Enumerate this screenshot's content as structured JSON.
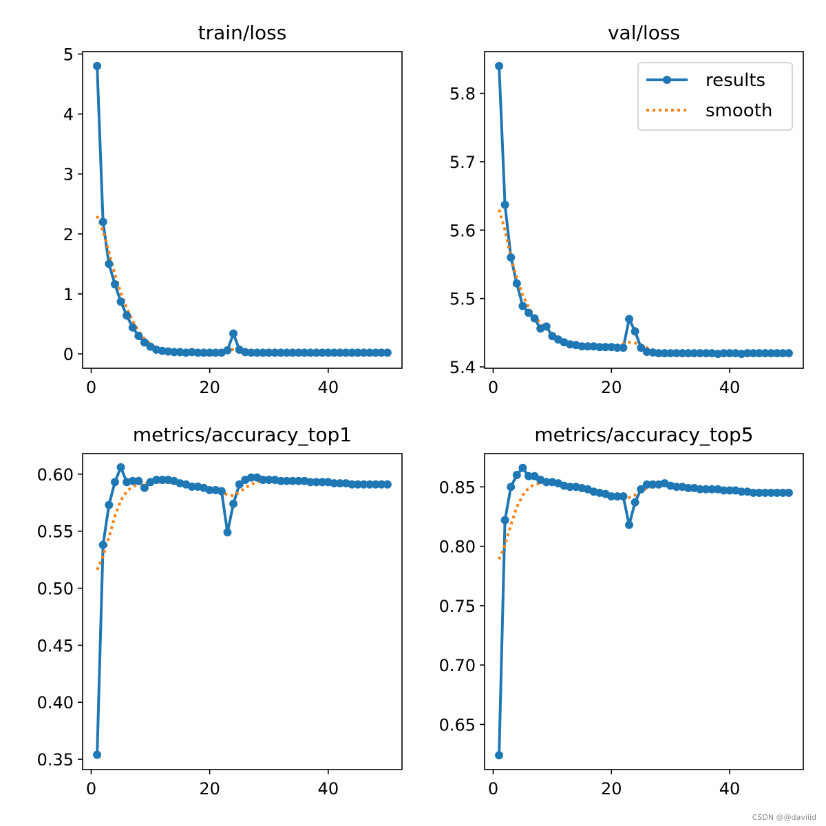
{
  "colors": {
    "results": "#1f77b4",
    "smooth": "#ff7f0e"
  },
  "watermark": "CSDN @@daviiid",
  "chart_data": [
    {
      "type": "line",
      "title": "train/loss",
      "xlim": [
        -1.45,
        52.45
      ],
      "ylim": [
        -0.24,
        5.04
      ],
      "xticks": [
        0,
        20,
        40
      ],
      "xtick_labels": [
        "0",
        "20",
        "40"
      ],
      "yticks": [
        0,
        1,
        2,
        3,
        4,
        5
      ],
      "ytick_labels": [
        "0",
        "1",
        "2",
        "3",
        "4",
        "5"
      ],
      "legend": null,
      "series": [
        {
          "name": "results",
          "style": "line-marker",
          "x": [
            1,
            2,
            3,
            4,
            5,
            6,
            7,
            8,
            9,
            10,
            11,
            12,
            13,
            14,
            15,
            16,
            17,
            18,
            19,
            20,
            21,
            22,
            23,
            24,
            25,
            26,
            27,
            28,
            29,
            30,
            31,
            32,
            33,
            34,
            35,
            36,
            37,
            38,
            39,
            40,
            41,
            42,
            43,
            44,
            45,
            46,
            47,
            48,
            49,
            50
          ],
          "values": [
            4.8,
            2.2,
            1.5,
            1.16,
            0.87,
            0.64,
            0.44,
            0.3,
            0.19,
            0.12,
            0.07,
            0.05,
            0.04,
            0.03,
            0.03,
            0.02,
            0.03,
            0.02,
            0.02,
            0.02,
            0.02,
            0.02,
            0.06,
            0.34,
            0.07,
            0.03,
            0.02,
            0.02,
            0.02,
            0.02,
            0.02,
            0.02,
            0.02,
            0.02,
            0.02,
            0.02,
            0.02,
            0.02,
            0.02,
            0.02,
            0.02,
            0.02,
            0.02,
            0.02,
            0.02,
            0.02,
            0.02,
            0.02,
            0.02,
            0.02
          ]
        },
        {
          "name": "smooth",
          "style": "dotted",
          "x": [
            1,
            2,
            3,
            4,
            5,
            6,
            7,
            8,
            9,
            10,
            11,
            12,
            13,
            14,
            15,
            16,
            17,
            18,
            19,
            20,
            21,
            22,
            23,
            24,
            25,
            26,
            27,
            28,
            29,
            30,
            31,
            32,
            33,
            34,
            35,
            36,
            37,
            38,
            39,
            40,
            41,
            42,
            43,
            44,
            45,
            46,
            47,
            48,
            49,
            50
          ],
          "values": [
            2.3,
            2.05,
            1.7,
            1.33,
            1.02,
            0.76,
            0.55,
            0.38,
            0.25,
            0.16,
            0.1,
            0.06,
            0.04,
            0.03,
            0.03,
            0.03,
            0.03,
            0.03,
            0.03,
            0.04,
            0.05,
            0.06,
            0.07,
            0.07,
            0.06,
            0.05,
            0.04,
            0.03,
            0.03,
            0.03,
            0.02,
            0.02,
            0.02,
            0.02,
            0.02,
            0.02,
            0.02,
            0.02,
            0.02,
            0.02,
            0.02,
            0.02,
            0.02,
            0.02,
            0.02,
            0.02,
            0.02,
            0.02,
            0.02,
            0.02
          ]
        }
      ]
    },
    {
      "type": "line",
      "title": "val/loss",
      "xlim": [
        -1.45,
        52.45
      ],
      "ylim": [
        5.398,
        5.861
      ],
      "xticks": [
        0,
        20,
        40
      ],
      "xtick_labels": [
        "0",
        "20",
        "40"
      ],
      "yticks": [
        5.4,
        5.5,
        5.6,
        5.7,
        5.8
      ],
      "ytick_labels": [
        "5.4",
        "5.5",
        "5.6",
        "5.7",
        "5.8"
      ],
      "legend": "top-right",
      "legend_labels": {
        "results": "results",
        "smooth": "smooth"
      },
      "series": [
        {
          "name": "results",
          "style": "line-marker",
          "x": [
            1,
            2,
            3,
            4,
            5,
            6,
            7,
            8,
            9,
            10,
            11,
            12,
            13,
            14,
            15,
            16,
            17,
            18,
            19,
            20,
            21,
            22,
            23,
            24,
            25,
            26,
            27,
            28,
            29,
            30,
            31,
            32,
            33,
            34,
            35,
            36,
            37,
            38,
            39,
            40,
            41,
            42,
            43,
            44,
            45,
            46,
            47,
            48,
            49,
            50
          ],
          "values": [
            5.84,
            5.637,
            5.56,
            5.522,
            5.489,
            5.479,
            5.471,
            5.456,
            5.459,
            5.445,
            5.44,
            5.436,
            5.433,
            5.432,
            5.43,
            5.43,
            5.43,
            5.429,
            5.429,
            5.429,
            5.428,
            5.428,
            5.47,
            5.452,
            5.428,
            5.422,
            5.421,
            5.42,
            5.42,
            5.42,
            5.42,
            5.42,
            5.42,
            5.42,
            5.42,
            5.42,
            5.42,
            5.419,
            5.42,
            5.42,
            5.42,
            5.419,
            5.42,
            5.42,
            5.42,
            5.42,
            5.42,
            5.42,
            5.42,
            5.42
          ]
        },
        {
          "name": "smooth",
          "style": "dotted",
          "x": [
            1,
            2,
            3,
            4,
            5,
            6,
            7,
            8,
            9,
            10,
            11,
            12,
            13,
            14,
            15,
            16,
            17,
            18,
            19,
            20,
            21,
            22,
            23,
            24,
            25,
            26,
            27,
            28,
            29,
            30,
            31,
            32,
            33,
            34,
            35,
            36,
            37,
            38,
            39,
            40,
            41,
            42,
            43,
            44,
            45,
            46,
            47,
            48,
            49,
            50
          ],
          "values": [
            5.63,
            5.6,
            5.56,
            5.53,
            5.505,
            5.487,
            5.474,
            5.464,
            5.456,
            5.449,
            5.443,
            5.438,
            5.435,
            5.433,
            5.432,
            5.431,
            5.43,
            5.43,
            5.43,
            5.431,
            5.432,
            5.434,
            5.436,
            5.435,
            5.432,
            5.428,
            5.425,
            5.423,
            5.422,
            5.421,
            5.421,
            5.42,
            5.42,
            5.42,
            5.42,
            5.42,
            5.42,
            5.42,
            5.42,
            5.42,
            5.42,
            5.42,
            5.42,
            5.42,
            5.42,
            5.42,
            5.42,
            5.42,
            5.42,
            5.42
          ]
        }
      ]
    },
    {
      "type": "line",
      "title": "metrics/accuracy_top1",
      "xlim": [
        -1.45,
        52.45
      ],
      "ylim": [
        0.341,
        0.618
      ],
      "xticks": [
        0,
        20,
        40
      ],
      "xtick_labels": [
        "0",
        "20",
        "40"
      ],
      "yticks": [
        0.35,
        0.4,
        0.45,
        0.5,
        0.55,
        0.6
      ],
      "ytick_labels": [
        "0.35",
        "0.40",
        "0.45",
        "0.50",
        "0.55",
        "0.60"
      ],
      "legend": null,
      "series": [
        {
          "name": "results",
          "style": "line-marker",
          "x": [
            1,
            2,
            3,
            4,
            5,
            6,
            7,
            8,
            9,
            10,
            11,
            12,
            13,
            14,
            15,
            16,
            17,
            18,
            19,
            20,
            21,
            22,
            23,
            24,
            25,
            26,
            27,
            28,
            29,
            30,
            31,
            32,
            33,
            34,
            35,
            36,
            37,
            38,
            39,
            40,
            41,
            42,
            43,
            44,
            45,
            46,
            47,
            48,
            49,
            50
          ],
          "values": [
            0.354,
            0.538,
            0.573,
            0.593,
            0.606,
            0.593,
            0.594,
            0.594,
            0.588,
            0.593,
            0.595,
            0.595,
            0.595,
            0.594,
            0.592,
            0.591,
            0.589,
            0.589,
            0.588,
            0.586,
            0.586,
            0.585,
            0.549,
            0.574,
            0.591,
            0.595,
            0.597,
            0.597,
            0.595,
            0.595,
            0.595,
            0.594,
            0.594,
            0.594,
            0.594,
            0.594,
            0.593,
            0.593,
            0.593,
            0.593,
            0.592,
            0.592,
            0.592,
            0.591,
            0.591,
            0.591,
            0.591,
            0.591,
            0.591,
            0.591
          ]
        },
        {
          "name": "smooth",
          "style": "dotted",
          "x": [
            1,
            2,
            3,
            4,
            5,
            6,
            7,
            8,
            9,
            10,
            11,
            12,
            13,
            14,
            15,
            16,
            17,
            18,
            19,
            20,
            21,
            22,
            23,
            24,
            25,
            26,
            27,
            28,
            29,
            30,
            31,
            32,
            33,
            34,
            35,
            36,
            37,
            38,
            39,
            40,
            41,
            42,
            43,
            44,
            45,
            46,
            47,
            48,
            49,
            50
          ],
          "values": [
            0.516,
            0.528,
            0.545,
            0.563,
            0.577,
            0.585,
            0.589,
            0.591,
            0.592,
            0.593,
            0.593,
            0.593,
            0.593,
            0.592,
            0.591,
            0.59,
            0.589,
            0.588,
            0.587,
            0.586,
            0.585,
            0.584,
            0.582,
            0.581,
            0.584,
            0.588,
            0.591,
            0.593,
            0.594,
            0.594,
            0.594,
            0.594,
            0.594,
            0.594,
            0.593,
            0.593,
            0.593,
            0.593,
            0.592,
            0.592,
            0.592,
            0.592,
            0.591,
            0.591,
            0.591,
            0.591,
            0.591,
            0.591,
            0.591,
            0.591
          ]
        }
      ]
    },
    {
      "type": "line",
      "title": "metrics/accuracy_top5",
      "xlim": [
        -1.45,
        52.45
      ],
      "ylim": [
        0.612,
        0.878
      ],
      "xticks": [
        0,
        20,
        40
      ],
      "xtick_labels": [
        "0",
        "20",
        "40"
      ],
      "yticks": [
        0.65,
        0.7,
        0.75,
        0.8,
        0.85
      ],
      "ytick_labels": [
        "0.65",
        "0.70",
        "0.75",
        "0.80",
        "0.85"
      ],
      "legend": null,
      "series": [
        {
          "name": "results",
          "style": "line-marker",
          "x": [
            1,
            2,
            3,
            4,
            5,
            6,
            7,
            8,
            9,
            10,
            11,
            12,
            13,
            14,
            15,
            16,
            17,
            18,
            19,
            20,
            21,
            22,
            23,
            24,
            25,
            26,
            27,
            28,
            29,
            30,
            31,
            32,
            33,
            34,
            35,
            36,
            37,
            38,
            39,
            40,
            41,
            42,
            43,
            44,
            45,
            46,
            47,
            48,
            49,
            50
          ],
          "values": [
            0.624,
            0.822,
            0.85,
            0.86,
            0.866,
            0.859,
            0.859,
            0.856,
            0.854,
            0.854,
            0.853,
            0.851,
            0.85,
            0.85,
            0.849,
            0.848,
            0.846,
            0.845,
            0.844,
            0.842,
            0.842,
            0.842,
            0.818,
            0.837,
            0.848,
            0.852,
            0.852,
            0.852,
            0.853,
            0.851,
            0.85,
            0.85,
            0.849,
            0.849,
            0.848,
            0.848,
            0.848,
            0.848,
            0.847,
            0.847,
            0.847,
            0.846,
            0.846,
            0.845,
            0.845,
            0.845,
            0.845,
            0.845,
            0.845,
            0.845
          ]
        },
        {
          "name": "smooth",
          "style": "dotted",
          "x": [
            1,
            2,
            3,
            4,
            5,
            6,
            7,
            8,
            9,
            10,
            11,
            12,
            13,
            14,
            15,
            16,
            17,
            18,
            19,
            20,
            21,
            22,
            23,
            24,
            25,
            26,
            27,
            28,
            29,
            30,
            31,
            32,
            33,
            34,
            35,
            36,
            37,
            38,
            39,
            40,
            41,
            42,
            43,
            44,
            45,
            46,
            47,
            48,
            49,
            50
          ],
          "values": [
            0.789,
            0.801,
            0.818,
            0.833,
            0.843,
            0.849,
            0.852,
            0.853,
            0.853,
            0.853,
            0.852,
            0.851,
            0.85,
            0.849,
            0.848,
            0.847,
            0.846,
            0.845,
            0.844,
            0.843,
            0.842,
            0.842,
            0.841,
            0.843,
            0.846,
            0.849,
            0.85,
            0.851,
            0.851,
            0.85,
            0.85,
            0.849,
            0.849,
            0.848,
            0.848,
            0.848,
            0.847,
            0.847,
            0.847,
            0.847,
            0.846,
            0.846,
            0.846,
            0.845,
            0.845,
            0.845,
            0.845,
            0.845,
            0.845,
            0.845
          ]
        }
      ]
    }
  ]
}
